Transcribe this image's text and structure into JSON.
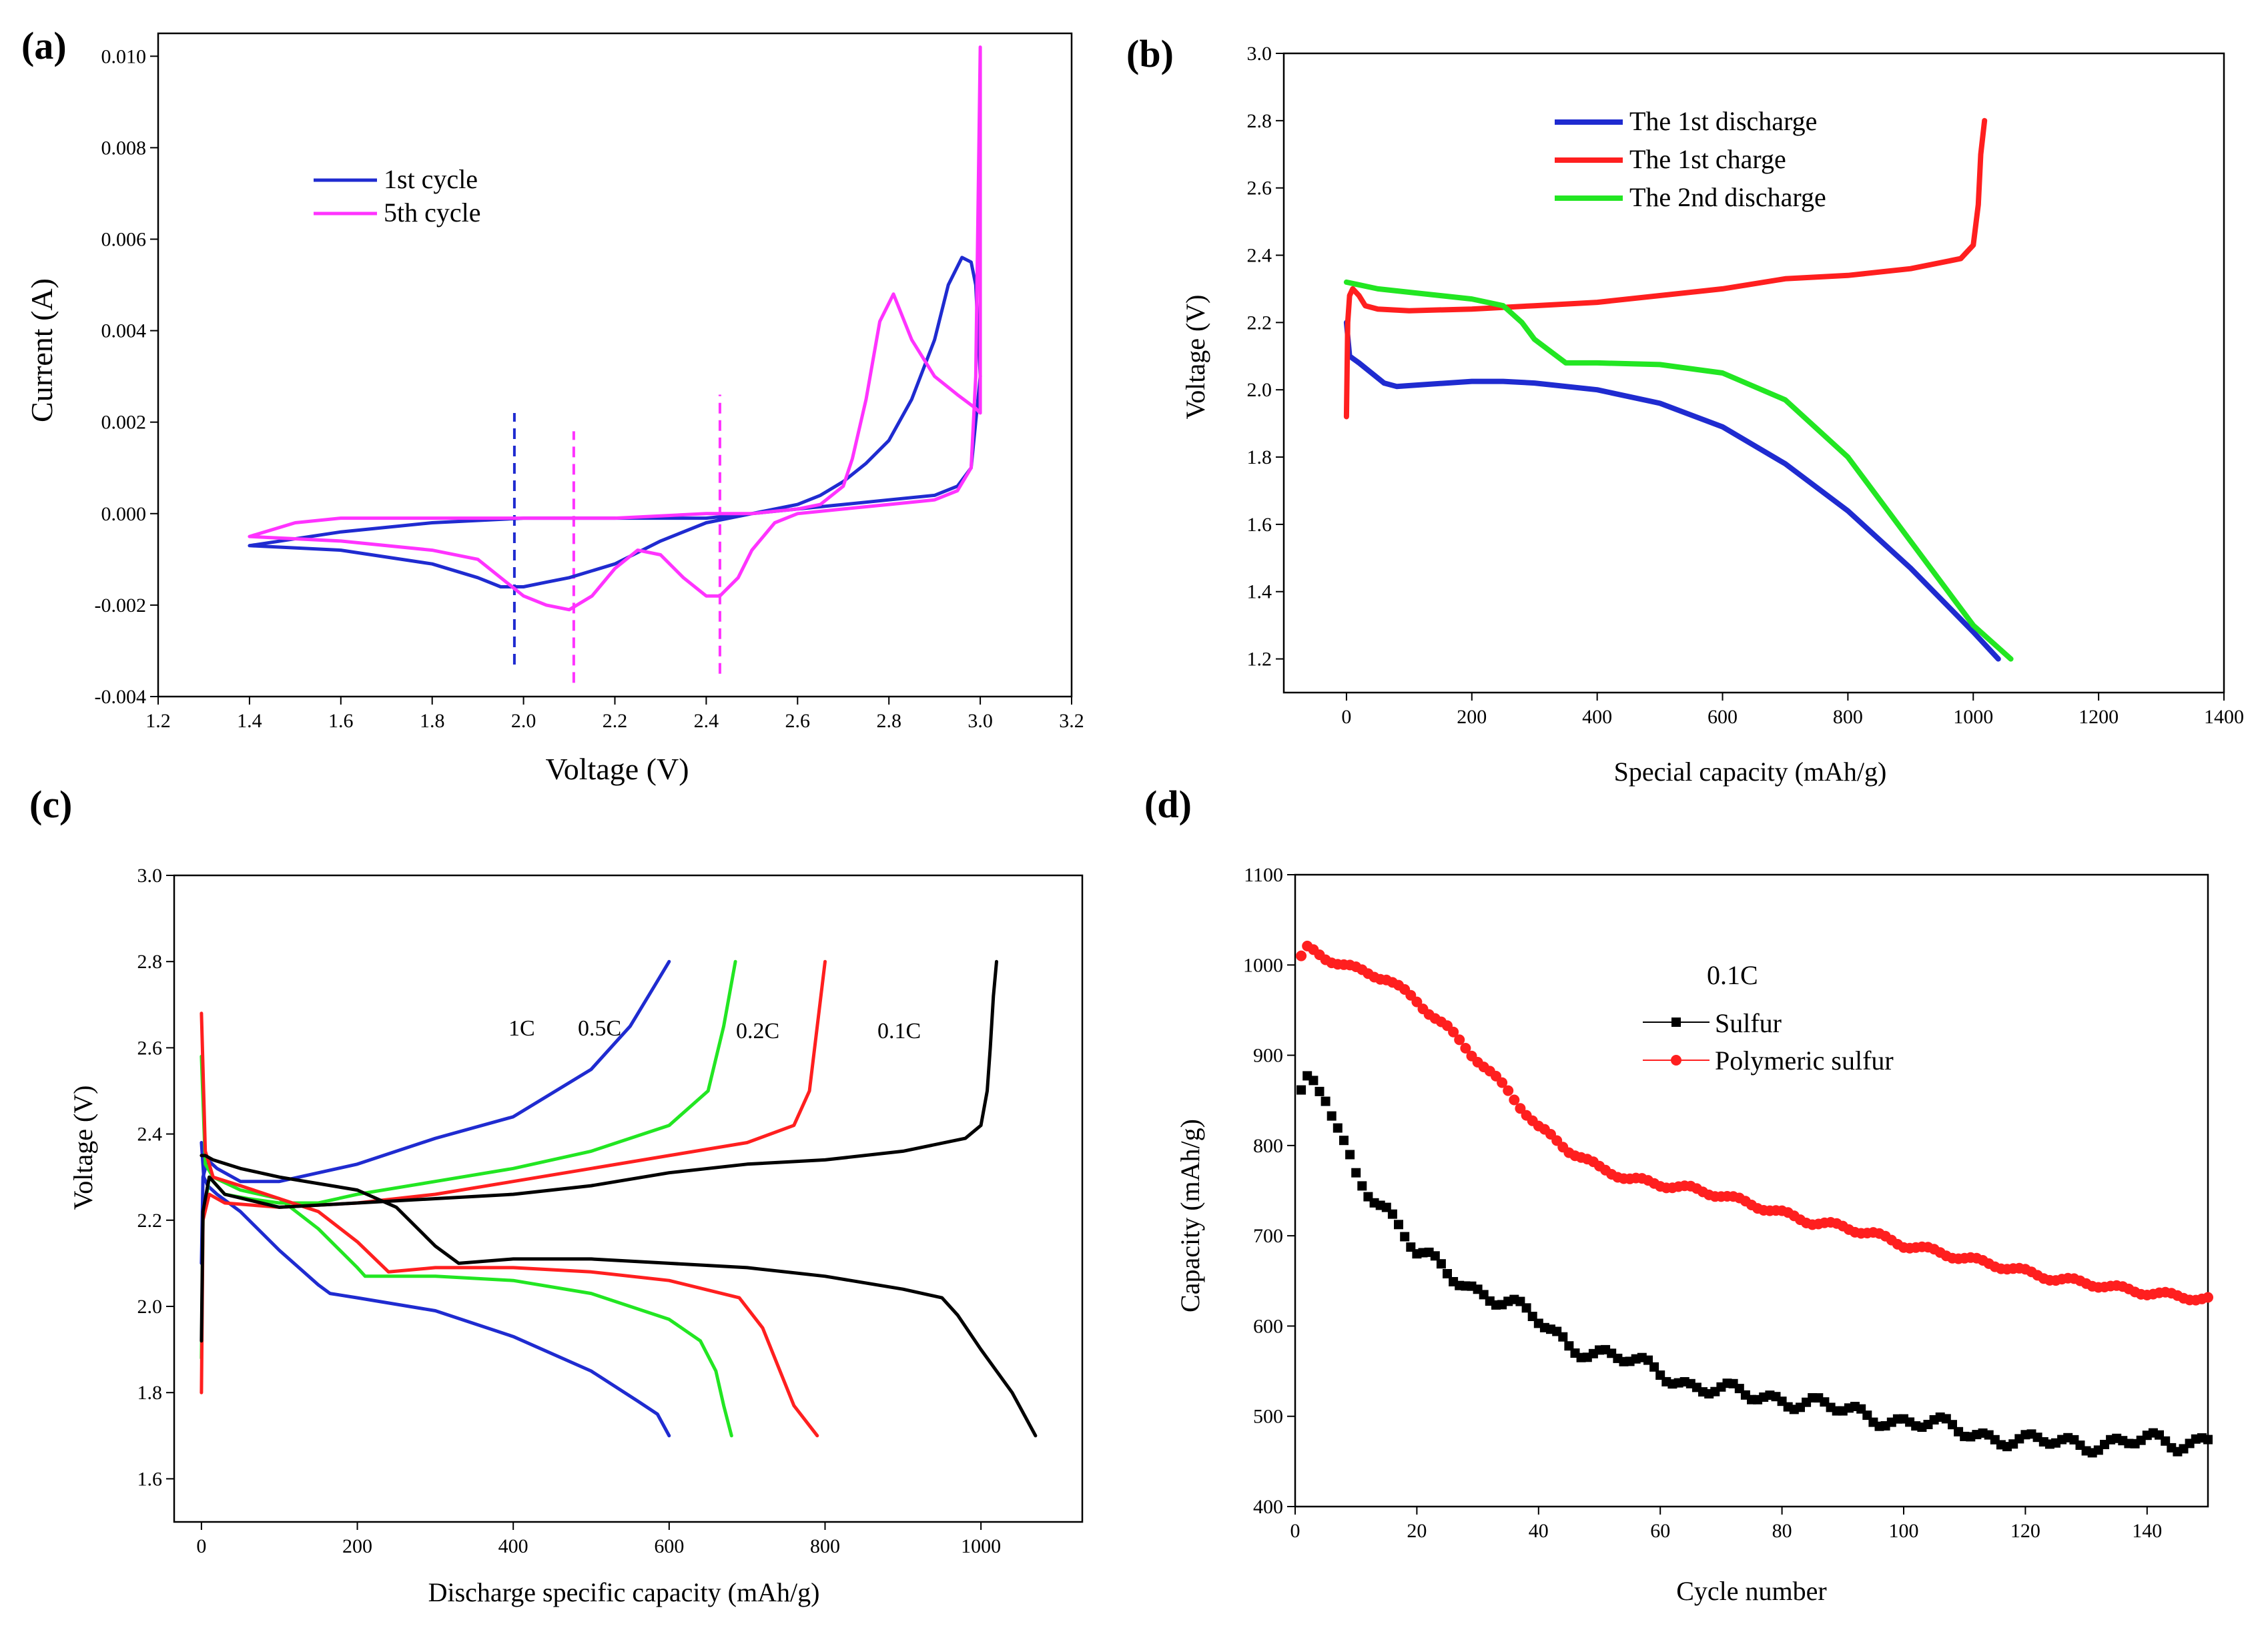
{
  "colors": {
    "blue": "#1f2bd0",
    "magenta": "#ff33ff",
    "red": "#ff1f1f",
    "green": "#22e622",
    "black": "#000000"
  },
  "chart_data": [
    {
      "panel": "(a)",
      "type": "line",
      "xlabel": "Voltage (V)",
      "ylabel": "Current (A)",
      "xlim": [
        1.2,
        3.2
      ],
      "ylim": [
        -0.004,
        0.0105
      ],
      "xticks": [
        "1.2",
        "1.4",
        "1.6",
        "1.8",
        "2.0",
        "2.2",
        "2.4",
        "2.6",
        "2.8",
        "3.0",
        "3.2"
      ],
      "yticks": [
        "-0.004",
        "-0.002",
        "0.000",
        "0.002",
        "0.004",
        "0.006",
        "0.008",
        "0.010"
      ],
      "legend": [
        "1st cycle",
        "5th cycle"
      ],
      "series": [
        {
          "name": "1st cycle",
          "color": "#1f2bd0",
          "x": [
            1.4,
            1.6,
            1.8,
            1.9,
            1.95,
            2.0,
            2.05,
            2.1,
            2.2,
            2.3,
            2.4,
            2.5,
            2.6,
            2.7,
            2.8,
            2.9,
            2.95,
            2.98,
            3.0,
            2.99,
            2.98,
            2.96,
            2.93,
            2.9,
            2.85,
            2.8,
            2.75,
            2.7,
            2.65,
            2.6,
            2.5,
            2.4,
            2.2,
            2.0,
            1.8,
            1.6,
            1.4
          ],
          "y": [
            -0.0007,
            -0.0008,
            -0.0011,
            -0.0014,
            -0.0016,
            -0.0016,
            -0.0015,
            -0.0014,
            -0.0011,
            -0.0006,
            -0.0002,
            0.0,
            0.0001,
            0.0002,
            0.0003,
            0.0004,
            0.0006,
            0.001,
            0.003,
            0.005,
            0.0055,
            0.0056,
            0.005,
            0.0038,
            0.0025,
            0.0016,
            0.0011,
            0.0007,
            0.0004,
            0.0002,
            0.0,
            -0.0001,
            -0.0001,
            -0.0001,
            -0.0002,
            -0.0004,
            -0.0007
          ]
        },
        {
          "name": "5th cycle",
          "color": "#ff33ff",
          "x": [
            1.4,
            1.6,
            1.8,
            1.9,
            1.95,
            2.0,
            2.05,
            2.1,
            2.15,
            2.2,
            2.25,
            2.3,
            2.35,
            2.4,
            2.43,
            2.47,
            2.5,
            2.55,
            2.6,
            2.7,
            2.8,
            2.9,
            2.95,
            2.98,
            2.99,
            3.0,
            3.0,
            2.99,
            2.95,
            2.9,
            2.85,
            2.81,
            2.78,
            2.75,
            2.72,
            2.7,
            2.65,
            2.6,
            2.5,
            2.4,
            2.2,
            2.0,
            1.8,
            1.6,
            1.5,
            1.4
          ],
          "y": [
            -0.0005,
            -0.0006,
            -0.0008,
            -0.001,
            -0.0014,
            -0.0018,
            -0.002,
            -0.0021,
            -0.0018,
            -0.0012,
            -0.0008,
            -0.0009,
            -0.0014,
            -0.0018,
            -0.0018,
            -0.0014,
            -0.0008,
            -0.0002,
            0.0,
            0.0001,
            0.0002,
            0.0003,
            0.0005,
            0.001,
            0.003,
            0.0102,
            0.0022,
            0.0023,
            0.0026,
            0.003,
            0.0038,
            0.0048,
            0.0042,
            0.0025,
            0.0012,
            0.0006,
            0.0002,
            0.0001,
            0.0,
            0.0,
            -0.0001,
            -0.0001,
            -0.0001,
            -0.0001,
            -0.0002,
            -0.0005
          ]
        }
      ],
      "vlines": [
        {
          "x": 1.98,
          "y0": -0.0033,
          "y1": 0.0022,
          "color": "#1f2bd0"
        },
        {
          "x": 2.11,
          "y0": -0.0037,
          "y1": 0.0018,
          "color": "#ff33ff"
        },
        {
          "x": 2.43,
          "y0": -0.0035,
          "y1": 0.0026,
          "color": "#ff33ff"
        }
      ]
    },
    {
      "panel": "(b)",
      "type": "line",
      "xlabel": "Special capacity (mAh/g)",
      "ylabel": "Voltage (V)",
      "xlim": [
        -100,
        1400
      ],
      "ylim": [
        1.1,
        3.0
      ],
      "xticks": [
        "0",
        "200",
        "400",
        "600",
        "800",
        "1000",
        "1200",
        "1400"
      ],
      "yticks": [
        "1.2",
        "1.4",
        "1.6",
        "1.8",
        "2.0",
        "2.2",
        "2.4",
        "2.6",
        "2.8",
        "3.0"
      ],
      "legend": [
        "The 1st discharge",
        "The 1st charge",
        "The 2nd discharge"
      ],
      "series": [
        {
          "name": "The 1st discharge",
          "color": "#1f2bd0",
          "x": [
            0,
            5,
            20,
            40,
            60,
            80,
            120,
            200,
            250,
            300,
            400,
            500,
            600,
            700,
            800,
            900,
            1000,
            1040
          ],
          "y": [
            2.2,
            2.1,
            2.08,
            2.05,
            2.02,
            2.01,
            2.015,
            2.025,
            2.025,
            2.02,
            2.0,
            1.96,
            1.89,
            1.78,
            1.64,
            1.47,
            1.28,
            1.2
          ]
        },
        {
          "name": "The 1st charge",
          "color": "#ff1f1f",
          "x": [
            0,
            2,
            5,
            10,
            20,
            30,
            50,
            100,
            200,
            300,
            400,
            500,
            600,
            700,
            800,
            900,
            980,
            1000,
            1008,
            1012,
            1018
          ],
          "y": [
            1.92,
            2.2,
            2.28,
            2.3,
            2.28,
            2.25,
            2.24,
            2.235,
            2.24,
            2.25,
            2.26,
            2.28,
            2.3,
            2.33,
            2.34,
            2.36,
            2.39,
            2.43,
            2.55,
            2.7,
            2.8
          ]
        },
        {
          "name": "The 2nd discharge",
          "color": "#22e622",
          "x": [
            0,
            50,
            100,
            200,
            250,
            280,
            300,
            350,
            400,
            500,
            600,
            700,
            800,
            900,
            1000,
            1060
          ],
          "y": [
            2.32,
            2.3,
            2.29,
            2.27,
            2.25,
            2.2,
            2.15,
            2.08,
            2.08,
            2.075,
            2.05,
            1.97,
            1.8,
            1.55,
            1.3,
            1.2
          ]
        }
      ]
    },
    {
      "panel": "(c)",
      "type": "line",
      "xlabel": "Discharge specific capacity (mAh/g)",
      "ylabel": "Voltage (V)",
      "xlim": [
        -35,
        1130
      ],
      "ylim": [
        1.5,
        3.0
      ],
      "xticks": [
        "0",
        "200",
        "400",
        "600",
        "800",
        "1000"
      ],
      "yticks": [
        "1.6",
        "1.8",
        "2.0",
        "2.2",
        "2.4",
        "2.6",
        "2.8",
        "3.0"
      ],
      "annotations": [
        "1C",
        "0.5C",
        "0.2C",
        "0.1C"
      ],
      "series": [
        {
          "name": "1C discharge",
          "color": "#1f2bd0",
          "x": [
            0,
            3,
            8,
            20,
            50,
            100,
            150,
            165,
            200,
            300,
            400,
            500,
            560,
            585,
            600
          ],
          "y": [
            2.38,
            2.3,
            2.28,
            2.26,
            2.22,
            2.13,
            2.05,
            2.03,
            2.02,
            1.99,
            1.93,
            1.85,
            1.78,
            1.75,
            1.7
          ]
        },
        {
          "name": "1C charge",
          "color": "#1f2bd0",
          "x": [
            0,
            2,
            8,
            20,
            50,
            100,
            200,
            300,
            400,
            500,
            550,
            580,
            600
          ],
          "y": [
            2.1,
            2.3,
            2.34,
            2.32,
            2.29,
            2.29,
            2.33,
            2.39,
            2.44,
            2.55,
            2.65,
            2.74,
            2.8
          ]
        },
        {
          "name": "0.5C discharge",
          "color": "#22e622",
          "x": [
            0,
            5,
            15,
            50,
            100,
            150,
            200,
            210,
            300,
            400,
            500,
            600,
            640,
            660,
            670,
            680
          ],
          "y": [
            2.58,
            2.33,
            2.3,
            2.27,
            2.25,
            2.18,
            2.09,
            2.07,
            2.07,
            2.06,
            2.03,
            1.97,
            1.92,
            1.85,
            1.77,
            1.7
          ]
        },
        {
          "name": "0.5C charge",
          "color": "#22e622",
          "x": [
            0,
            2,
            10,
            30,
            60,
            100,
            150,
            200,
            300,
            400,
            500,
            600,
            650,
            670,
            685
          ],
          "y": [
            1.88,
            2.2,
            2.3,
            2.26,
            2.25,
            2.24,
            2.24,
            2.26,
            2.29,
            2.32,
            2.36,
            2.42,
            2.5,
            2.65,
            2.8
          ]
        },
        {
          "name": "0.2C discharge",
          "color": "#ff1f1f",
          "x": [
            0,
            5,
            15,
            50,
            100,
            150,
            200,
            240,
            300,
            400,
            500,
            600,
            690,
            720,
            740,
            760,
            790
          ],
          "y": [
            2.68,
            2.36,
            2.3,
            2.28,
            2.25,
            2.22,
            2.15,
            2.08,
            2.09,
            2.09,
            2.08,
            2.06,
            2.02,
            1.95,
            1.86,
            1.77,
            1.7
          ]
        },
        {
          "name": "0.2C charge",
          "color": "#ff1f1f",
          "x": [
            0,
            2,
            10,
            30,
            100,
            200,
            300,
            400,
            500,
            600,
            700,
            760,
            780,
            790,
            800
          ],
          "y": [
            1.8,
            2.2,
            2.26,
            2.24,
            2.23,
            2.24,
            2.26,
            2.29,
            2.32,
            2.35,
            2.38,
            2.42,
            2.5,
            2.65,
            2.8
          ]
        },
        {
          "name": "0.1C discharge",
          "color": "#000000",
          "x": [
            0,
            5,
            15,
            50,
            100,
            200,
            250,
            300,
            330,
            400,
            500,
            600,
            700,
            800,
            900,
            950,
            970,
            1000,
            1040,
            1070
          ],
          "y": [
            2.35,
            2.35,
            2.34,
            2.32,
            2.3,
            2.27,
            2.23,
            2.14,
            2.1,
            2.11,
            2.11,
            2.1,
            2.09,
            2.07,
            2.04,
            2.02,
            1.98,
            1.9,
            1.8,
            1.7
          ]
        },
        {
          "name": "0.1C charge",
          "color": "#000000",
          "x": [
            0,
            2,
            10,
            30,
            100,
            200,
            300,
            400,
            500,
            600,
            700,
            800,
            900,
            980,
            1000,
            1008,
            1012,
            1016,
            1020
          ],
          "y": [
            1.92,
            2.22,
            2.3,
            2.26,
            2.23,
            2.24,
            2.25,
            2.26,
            2.28,
            2.31,
            2.33,
            2.34,
            2.36,
            2.39,
            2.42,
            2.5,
            2.6,
            2.72,
            2.8
          ]
        }
      ]
    },
    {
      "panel": "(d)",
      "type": "scatter",
      "xlabel": "Cycle number",
      "ylabel": "Capacity (mAh/g)",
      "xlim": [
        0,
        150
      ],
      "ylim": [
        400,
        1100
      ],
      "xticks": [
        "0",
        "20",
        "40",
        "60",
        "80",
        "100",
        "120",
        "140"
      ],
      "yticks": [
        "400",
        "500",
        "600",
        "700",
        "800",
        "900",
        "1000",
        "1100"
      ],
      "legend_title": "0.1C",
      "legend": [
        "Sulfur",
        "Polymeric sulfur"
      ],
      "series": [
        {
          "name": "Sulfur",
          "color": "#000000",
          "marker": "square",
          "keyframes_x": [
            1,
            2,
            3,
            5,
            8,
            10,
            15,
            20,
            25,
            30,
            35,
            40,
            45,
            50,
            55,
            60,
            65,
            70,
            75,
            80,
            85,
            90,
            95,
            100,
            105,
            110,
            115,
            120,
            125,
            130,
            135,
            140,
            145,
            150
          ],
          "keyframes_y": [
            855,
            868,
            865,
            850,
            800,
            770,
            730,
            680,
            660,
            640,
            625,
            605,
            580,
            570,
            560,
            550,
            535,
            528,
            522,
            520,
            515,
            505,
            500,
            495,
            490,
            483,
            478,
            472,
            470,
            470,
            472,
            472,
            468,
            478
          ]
        },
        {
          "name": "Polymeric sulfur",
          "color": "#ff1f1f",
          "marker": "circle",
          "keyframes_x": [
            1,
            2,
            3,
            5,
            8,
            10,
            15,
            20,
            25,
            30,
            35,
            40,
            45,
            50,
            55,
            60,
            65,
            70,
            75,
            80,
            85,
            90,
            95,
            100,
            105,
            110,
            115,
            120,
            125,
            130,
            135,
            140,
            145,
            150
          ],
          "keyframes_y": [
            1008,
            1018,
            1015,
            1008,
            1000,
            995,
            985,
            960,
            930,
            895,
            860,
            820,
            795,
            775,
            763,
            757,
            752,
            745,
            735,
            725,
            715,
            710,
            702,
            690,
            683,
            675,
            668,
            660,
            652,
            648,
            642,
            637,
            633,
            630
          ]
        }
      ]
    }
  ]
}
